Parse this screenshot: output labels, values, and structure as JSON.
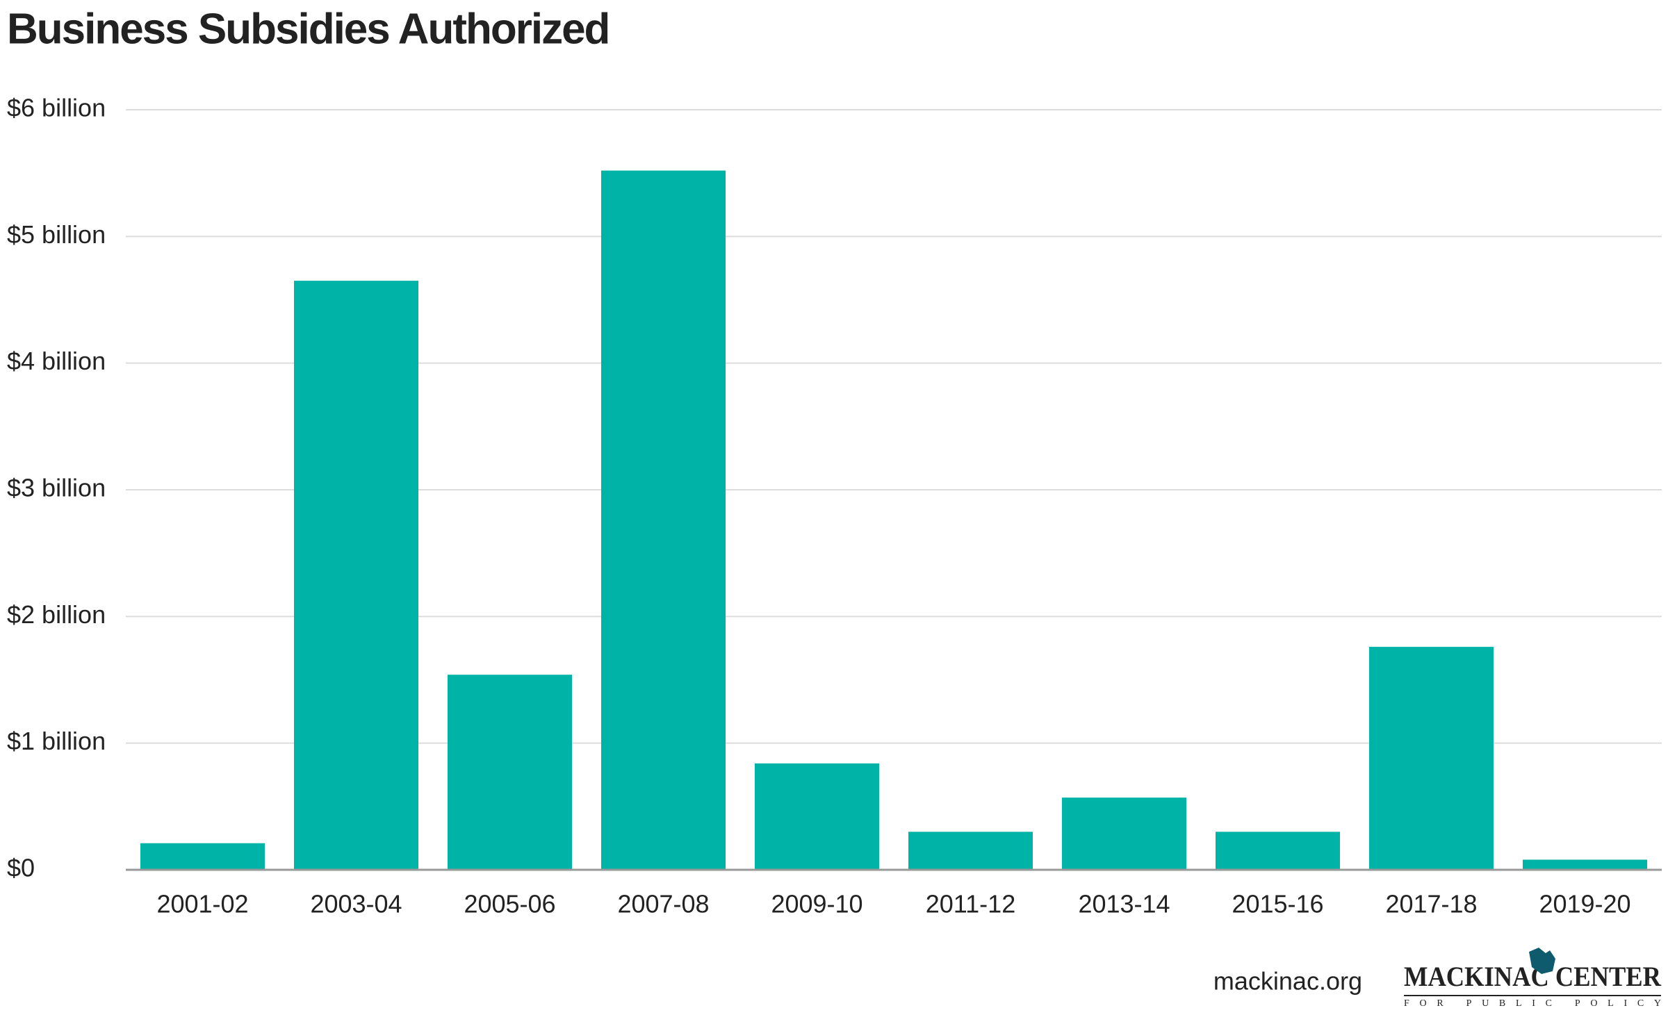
{
  "chart_data": {
    "type": "bar",
    "title": "Business Subsidies Authorized",
    "categories": [
      "2001-02",
      "2003-04",
      "2005-06",
      "2007-08",
      "2009-10",
      "2011-12",
      "2013-14",
      "2015-16",
      "2017-18",
      "2019-20"
    ],
    "values": [
      0.21,
      4.65,
      1.54,
      5.52,
      0.84,
      0.3,
      0.57,
      0.3,
      1.76,
      0.08
    ],
    "color": "#00b3a7",
    "ylim": [
      0,
      6
    ],
    "yticks": [
      {
        "value": 0,
        "label": "$0"
      },
      {
        "value": 1,
        "label": "$1 billion"
      },
      {
        "value": 2,
        "label": "$2 billion"
      },
      {
        "value": 3,
        "label": "$3 billion"
      },
      {
        "value": 4,
        "label": "$4 billion"
      },
      {
        "value": 5,
        "label": "$5 billion"
      },
      {
        "value": 6,
        "label": "$6 billion"
      }
    ],
    "grid": true
  },
  "footer": {
    "source": "mackinac.org",
    "logo_name": "MACKINAC CENTER",
    "logo_tagline": "FOR PUBLIC POLICY"
  }
}
